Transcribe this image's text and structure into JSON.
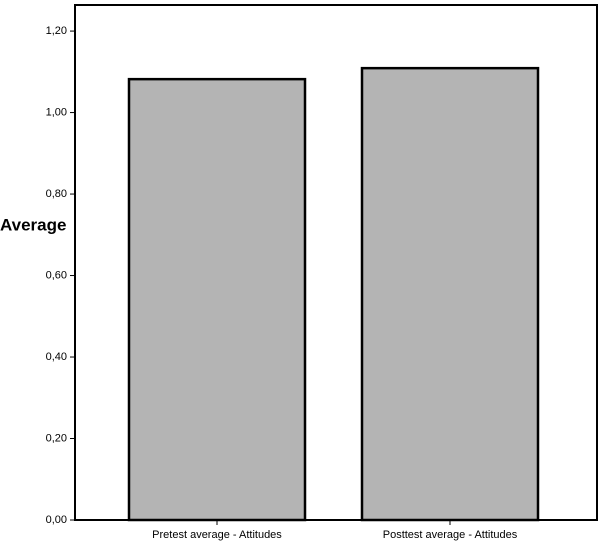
{
  "chart_data": {
    "type": "bar",
    "y_label": "Average",
    "categories": [
      "Pretest average - Attitudes",
      "Posttest average - Attitudes"
    ],
    "values": [
      1.082,
      1.109
    ],
    "color": "#b4b4b4",
    "ylim": [
      0,
      1.264
    ],
    "yticks": [
      {
        "value": 0,
        "label": "0,00"
      },
      {
        "value": 0.2,
        "label": "0,20"
      },
      {
        "value": 0.4,
        "label": "0,40"
      },
      {
        "value": 0.6,
        "label": "0,60"
      },
      {
        "value": 0.8,
        "label": "0,80"
      },
      {
        "value": 1.0,
        "label": "1,00"
      },
      {
        "value": 1.2,
        "label": "1,20"
      }
    ],
    "grid": false
  }
}
